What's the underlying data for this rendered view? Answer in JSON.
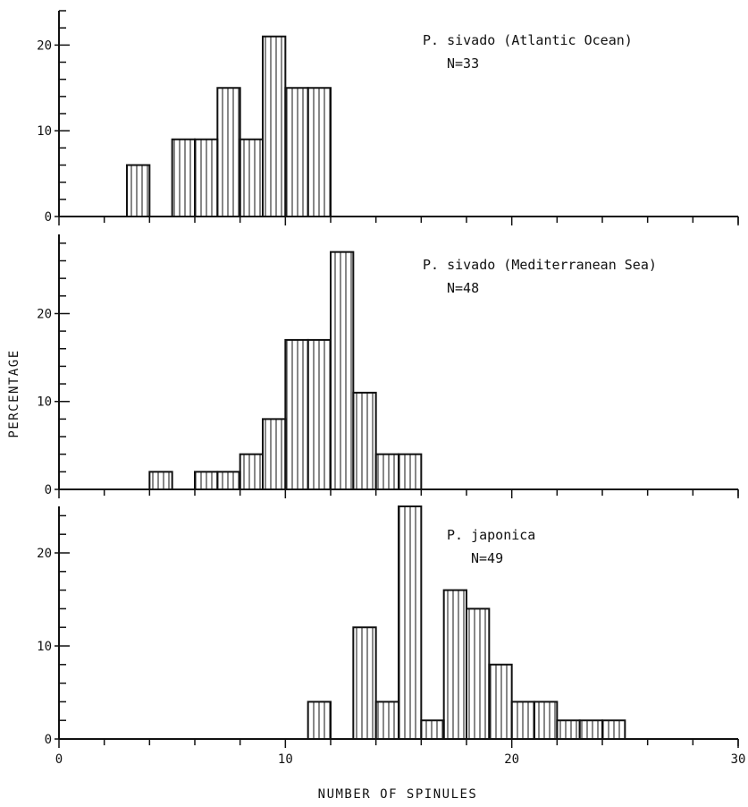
{
  "figure": {
    "ylabel": "PERCENTAGE",
    "xlabel": "NUMBER OF SPINULES"
  },
  "chart_data": [
    {
      "type": "bar",
      "title": "P. sivado (Atlantic Ocean)",
      "subtitle": "N=33",
      "xlim": [
        0,
        30
      ],
      "ylim": [
        0,
        24
      ],
      "yticks": [
        0,
        10,
        20
      ],
      "bins": [
        {
          "x0": 3,
          "x1": 4,
          "value": 6
        },
        {
          "x0": 5,
          "x1": 6,
          "value": 9
        },
        {
          "x0": 6,
          "x1": 7,
          "value": 9
        },
        {
          "x0": 7,
          "x1": 8,
          "value": 15
        },
        {
          "x0": 8,
          "x1": 9,
          "value": 9
        },
        {
          "x0": 9,
          "x1": 10,
          "value": 21
        },
        {
          "x0": 10,
          "x1": 11,
          "value": 15
        },
        {
          "x0": 11,
          "x1": 12,
          "value": 15
        }
      ]
    },
    {
      "type": "bar",
      "title": "P. sivado (Mediterranean Sea)",
      "subtitle": "N=48",
      "xlim": [
        0,
        30
      ],
      "ylim": [
        0,
        29
      ],
      "yticks": [
        0,
        10,
        20
      ],
      "bins": [
        {
          "x0": 4,
          "x1": 5,
          "value": 2
        },
        {
          "x0": 6,
          "x1": 7,
          "value": 2
        },
        {
          "x0": 7,
          "x1": 8,
          "value": 2
        },
        {
          "x0": 8,
          "x1": 9,
          "value": 4
        },
        {
          "x0": 9,
          "x1": 10,
          "value": 8
        },
        {
          "x0": 10,
          "x1": 11,
          "value": 17
        },
        {
          "x0": 11,
          "x1": 12,
          "value": 17
        },
        {
          "x0": 12,
          "x1": 13,
          "value": 27
        },
        {
          "x0": 13,
          "x1": 14,
          "value": 11
        },
        {
          "x0": 14,
          "x1": 15,
          "value": 4
        },
        {
          "x0": 15,
          "x1": 16,
          "value": 4
        }
      ]
    },
    {
      "type": "bar",
      "title": "P. japonica",
      "subtitle": "N=49",
      "xlim": [
        0,
        30
      ],
      "ylim": [
        0,
        25
      ],
      "yticks": [
        0,
        10,
        20
      ],
      "xticks": [
        0,
        10,
        20,
        30
      ],
      "bins": [
        {
          "x0": 11,
          "x1": 12,
          "value": 4
        },
        {
          "x0": 13,
          "x1": 14,
          "value": 12
        },
        {
          "x0": 14,
          "x1": 15,
          "value": 4
        },
        {
          "x0": 15,
          "x1": 16,
          "value": 25
        },
        {
          "x0": 16,
          "x1": 17,
          "value": 2
        },
        {
          "x0": 17,
          "x1": 18,
          "value": 16
        },
        {
          "x0": 18,
          "x1": 19,
          "value": 14
        },
        {
          "x0": 19,
          "x1": 20,
          "value": 8
        },
        {
          "x0": 20,
          "x1": 21,
          "value": 4
        },
        {
          "x0": 21,
          "x1": 22,
          "value": 4
        },
        {
          "x0": 22,
          "x1": 23,
          "value": 2
        },
        {
          "x0": 23,
          "x1": 24,
          "value": 2
        },
        {
          "x0": 24,
          "x1": 25,
          "value": 2
        }
      ]
    }
  ]
}
